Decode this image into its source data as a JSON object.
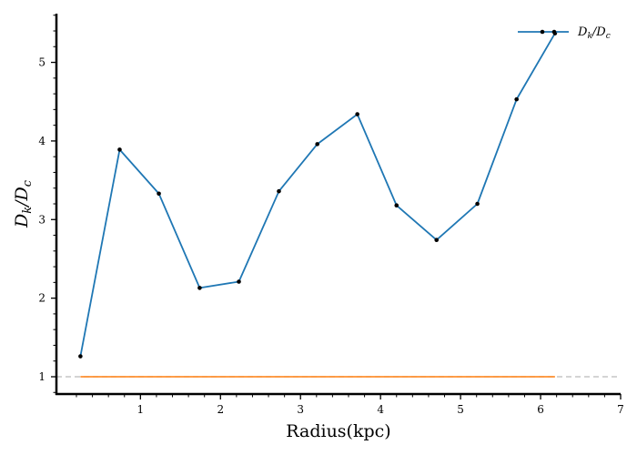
{
  "chart_data": {
    "type": "line",
    "xlabel": "Radius(kpc)",
    "ylabel": {
      "main": "D",
      "sub1": "k",
      "mid": "/D",
      "sub2": "c"
    },
    "xlim": [
      -0.05,
      7.0
    ],
    "ylim": [
      0.78,
      5.62
    ],
    "xticks": [
      1,
      2,
      3,
      4,
      5,
      6,
      7
    ],
    "yticks": [
      1,
      2,
      3,
      4,
      5
    ],
    "grid": false,
    "legend_position": "top-right",
    "series": [
      {
        "name": "D_k/D_c",
        "legend_label": {
          "main": "D",
          "sub1": "k",
          "mid": "/D",
          "sub2": "c"
        },
        "color": "#1f77b4",
        "marker_color": "#000000",
        "x": [
          0.25,
          0.74,
          1.23,
          1.74,
          2.23,
          2.73,
          3.21,
          3.71,
          4.2,
          4.7,
          5.21,
          5.7,
          6.18
        ],
        "y": [
          1.26,
          3.89,
          3.33,
          2.13,
          2.21,
          3.36,
          3.96,
          4.34,
          3.18,
          2.74,
          3.2,
          4.53,
          5.37
        ]
      }
    ],
    "reference_lines": [
      {
        "y": 1.0,
        "x": [
          0.25,
          6.18
        ],
        "color": "#ff7f0e",
        "style": "solid"
      },
      {
        "y": 1.0,
        "x": [
          -0.05,
          7.0
        ],
        "color": "#bbbbbb",
        "style": "dashed"
      }
    ]
  }
}
